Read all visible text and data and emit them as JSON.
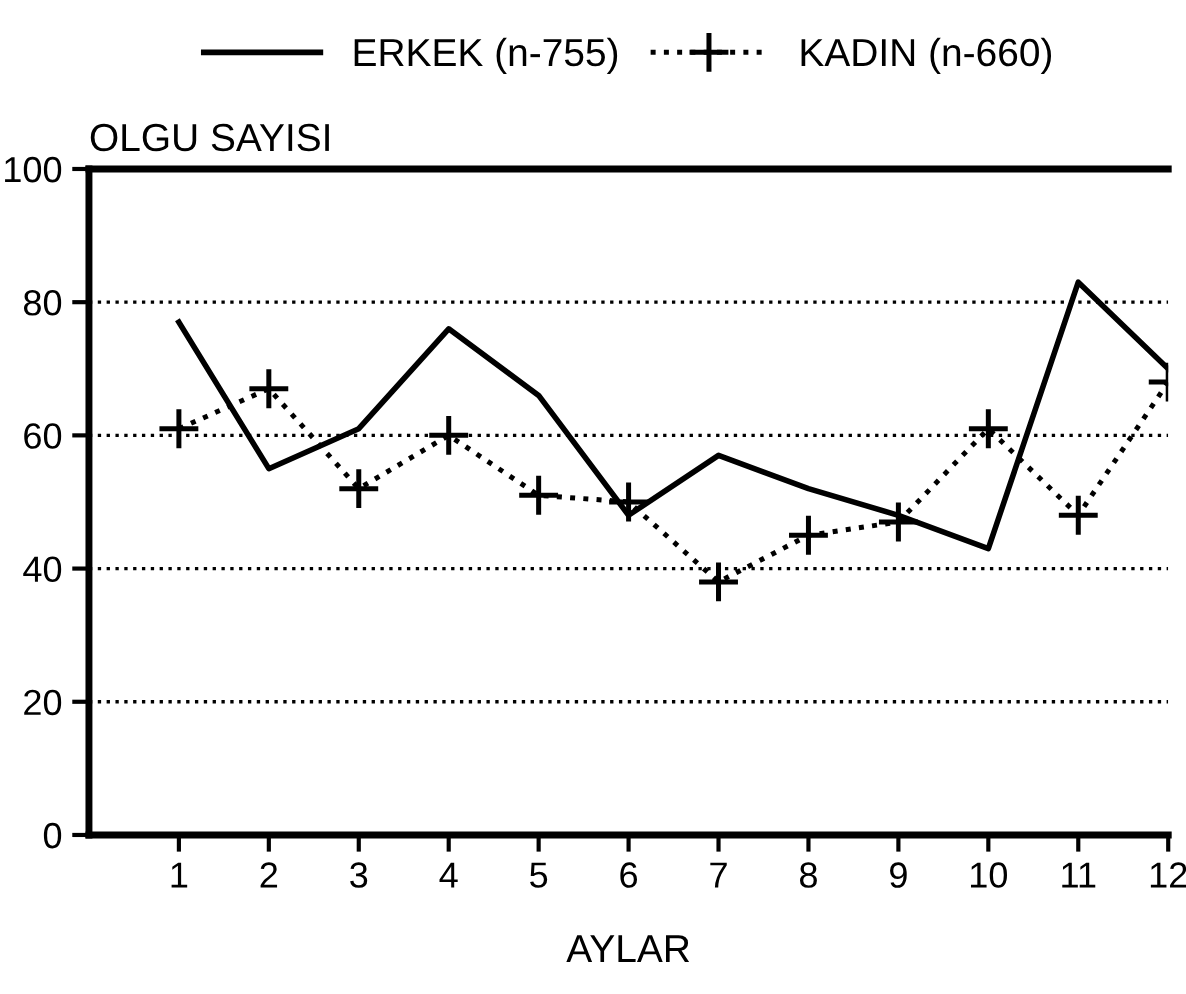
{
  "chart_data": {
    "type": "line",
    "ylabel": "OLGU SAYISI",
    "xlabel": "AYLAR",
    "x": [
      1,
      2,
      3,
      4,
      5,
      6,
      7,
      8,
      9,
      10,
      11,
      12
    ],
    "xlim": [
      0,
      12
    ],
    "xticks": [
      1,
      2,
      3,
      4,
      5,
      6,
      7,
      8,
      9,
      10,
      11,
      12
    ],
    "ylim": [
      0,
      100
    ],
    "yticks": [
      0,
      20,
      40,
      60,
      80,
      100
    ],
    "grid": "y",
    "legend": "top",
    "series": [
      {
        "name": "ERKEK (n-755)",
        "color": "#000000",
        "line_style": "solid",
        "marker": "none",
        "values": [
          77,
          55,
          61,
          76,
          66,
          48,
          57,
          52,
          48,
          43,
          83,
          70
        ]
      },
      {
        "name": "KADIN (n-660)",
        "color": "#000000",
        "line_style": "dotted",
        "marker": "cross",
        "values": [
          61,
          67,
          52,
          60,
          51,
          50,
          38,
          45,
          47,
          61,
          48,
          68
        ]
      }
    ]
  }
}
